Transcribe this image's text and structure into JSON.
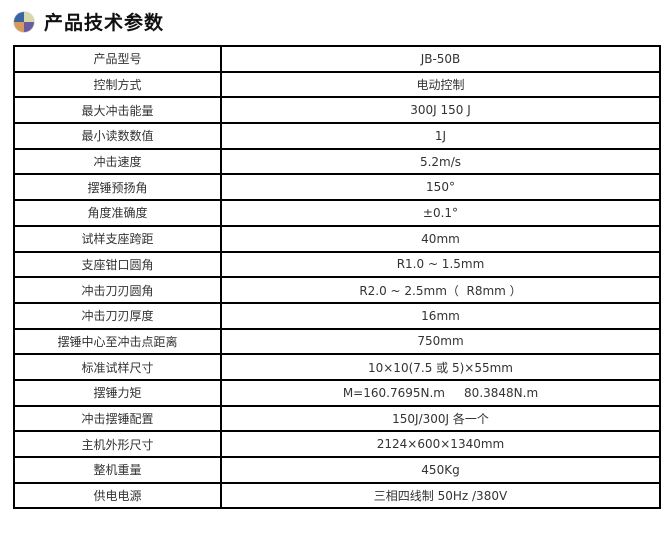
{
  "header": {
    "title": "产品技术参数",
    "icon": "quadrant-ball-icon"
  },
  "rows": [
    [
      "产品型号",
      "JB-50B"
    ],
    [
      "控制方式",
      "电动控制"
    ],
    [
      "最大冲击能量",
      "300J 150 J"
    ],
    [
      "最小读数数值",
      "1J"
    ],
    [
      "冲击速度",
      "5.2m/s"
    ],
    [
      "摆锤预扬角",
      "150°"
    ],
    [
      "角度准确度",
      "±0.1°"
    ],
    [
      "试样支座跨距",
      "40mm"
    ],
    [
      "支座钳口圆角",
      "R1.0 ~ 1.5mm"
    ],
    [
      "冲击刀刃圆角",
      "R2.0 ~ 2.5mm（  R8mm ）"
    ],
    [
      "冲击刀刃厚度",
      "16mm"
    ],
    [
      "摆锤中心至冲击点距离",
      "750mm"
    ],
    [
      "标准试样尺寸",
      "10×10(7.5 或 5)×55mm"
    ],
    [
      "摆锤力矩",
      "M=160.7695N.m     80.3848N.m"
    ],
    [
      "冲击摆锤配置",
      "150J/300J 各一个"
    ],
    [
      "主机外形尺寸",
      "2124×600×1340mm"
    ],
    [
      "整机重量",
      "450Kg"
    ],
    [
      "供电电源",
      "三相四线制 50Hz /380V"
    ]
  ]
}
